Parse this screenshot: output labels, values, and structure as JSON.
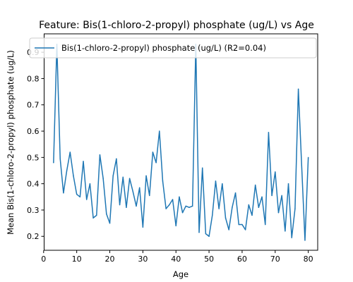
{
  "chart_data": {
    "type": "line",
    "title": "Feature: Bis(1-chloro-2-propyl) phosphate (ug/L) vs Age",
    "xlabel": "Age",
    "ylabel": "Mean Bis(1-chloro-2-propyl) phosphate (ug/L)",
    "xlim": [
      0.15,
      82.85
    ],
    "ylim": [
      0.147,
      0.97
    ],
    "xticks": [
      0,
      10,
      20,
      30,
      40,
      50,
      60,
      70,
      80
    ],
    "yticks": [
      0.2,
      0.3,
      0.4,
      0.5,
      0.6,
      0.7,
      0.8,
      0.9
    ],
    "ytick_labels": [
      "0.2",
      "0.3",
      "0.4",
      "0.5",
      "0.6",
      "0.7",
      "0.8",
      "0.9"
    ],
    "grid": false,
    "legend_position": "top",
    "series": [
      {
        "name": "Bis(1-chloro-2-propyl) phosphate (ug/L) (R2=0.04)",
        "color": "#1f77b4",
        "x": [
          3,
          4,
          5,
          6,
          7,
          8,
          9,
          10,
          11,
          12,
          13,
          14,
          15,
          16,
          17,
          18,
          19,
          20,
          21,
          22,
          23,
          24,
          25,
          26,
          27,
          28,
          29,
          30,
          31,
          32,
          33,
          34,
          35,
          36,
          37,
          38,
          39,
          40,
          41,
          42,
          43,
          44,
          45,
          46,
          47,
          48,
          49,
          50,
          51,
          52,
          53,
          54,
          55,
          56,
          57,
          58,
          59,
          60,
          61,
          62,
          63,
          64,
          65,
          66,
          67,
          68,
          69,
          70,
          71,
          72,
          73,
          74,
          75,
          76,
          77,
          78,
          79,
          80
        ],
        "y": [
          0.48,
          0.93,
          0.495,
          0.365,
          0.45,
          0.52,
          0.43,
          0.36,
          0.35,
          0.485,
          0.34,
          0.4,
          0.27,
          0.28,
          0.51,
          0.42,
          0.285,
          0.25,
          0.43,
          0.495,
          0.32,
          0.425,
          0.31,
          0.42,
          0.37,
          0.315,
          0.385,
          0.235,
          0.43,
          0.355,
          0.52,
          0.48,
          0.6,
          0.41,
          0.305,
          0.32,
          0.34,
          0.24,
          0.35,
          0.29,
          0.315,
          0.31,
          0.315,
          0.93,
          0.215,
          0.46,
          0.21,
          0.2,
          0.28,
          0.41,
          0.305,
          0.4,
          0.27,
          0.225,
          0.31,
          0.365,
          0.245,
          0.245,
          0.225,
          0.32,
          0.28,
          0.395,
          0.31,
          0.35,
          0.245,
          0.595,
          0.355,
          0.445,
          0.29,
          0.355,
          0.22,
          0.4,
          0.195,
          0.305,
          0.76,
          0.47,
          0.185,
          0.5
        ]
      }
    ]
  }
}
